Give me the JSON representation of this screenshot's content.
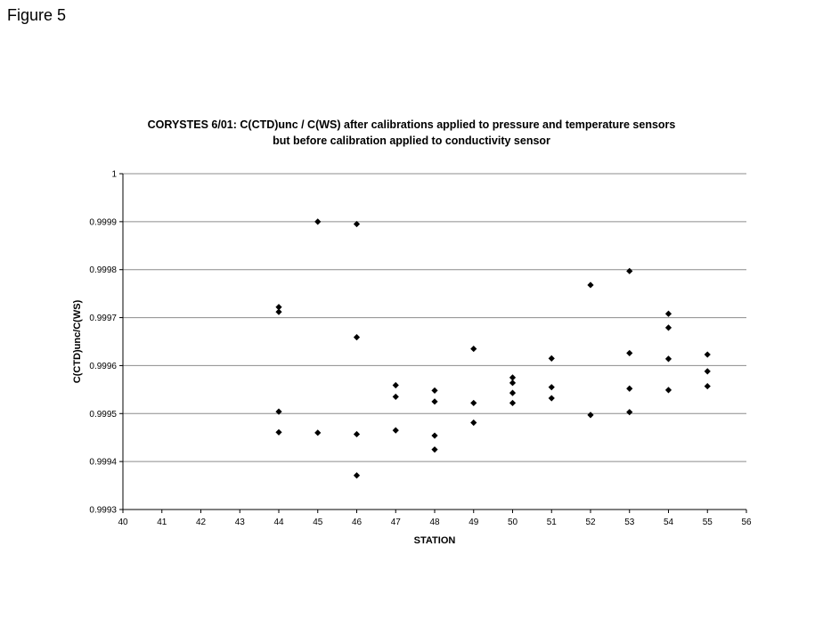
{
  "figure_label": "Figure 5",
  "chart_data": {
    "type": "scatter",
    "title_line1": "CORYSTES 6/01: C(CTD)unc / C(WS) after calibrations applied to pressure and temperature sensors",
    "title_line2": "but before calibration applied to conductivity sensor",
    "xlabel": "STATION",
    "ylabel": "C(CTD)unc/C(WS)",
    "xlim": [
      40,
      56
    ],
    "ylim": [
      0.9993,
      1
    ],
    "xticks": [
      40,
      41,
      42,
      43,
      44,
      45,
      46,
      47,
      48,
      49,
      50,
      51,
      52,
      53,
      54,
      55,
      56
    ],
    "yticks": [
      "0.9993",
      "0.9994",
      "0.9995",
      "0.9996",
      "0.9997",
      "0.9998",
      "0.9999",
      "1"
    ],
    "ytick_values": [
      0.9993,
      0.9994,
      0.9995,
      0.9996,
      0.9997,
      0.9998,
      0.9999,
      1.0
    ],
    "grid": "horizontal",
    "marker_color": "#000000",
    "points": [
      {
        "x": 44,
        "y": 0.999722
      },
      {
        "x": 44,
        "y": 0.999712
      },
      {
        "x": 44,
        "y": 0.999504
      },
      {
        "x": 44,
        "y": 0.999461
      },
      {
        "x": 45,
        "y": 0.9999
      },
      {
        "x": 45,
        "y": 0.99946
      },
      {
        "x": 46,
        "y": 0.999895
      },
      {
        "x": 46,
        "y": 0.999659
      },
      {
        "x": 46,
        "y": 0.999457
      },
      {
        "x": 46,
        "y": 0.999371
      },
      {
        "x": 47,
        "y": 0.999559
      },
      {
        "x": 47,
        "y": 0.999535
      },
      {
        "x": 47,
        "y": 0.999465
      },
      {
        "x": 48,
        "y": 0.999548
      },
      {
        "x": 48,
        "y": 0.999525
      },
      {
        "x": 48,
        "y": 0.999454
      },
      {
        "x": 48,
        "y": 0.999425
      },
      {
        "x": 49,
        "y": 0.999635
      },
      {
        "x": 49,
        "y": 0.999522
      },
      {
        "x": 49,
        "y": 0.999481
      },
      {
        "x": 50,
        "y": 0.999575
      },
      {
        "x": 50,
        "y": 0.999564
      },
      {
        "x": 50,
        "y": 0.999543
      },
      {
        "x": 50,
        "y": 0.999522
      },
      {
        "x": 51,
        "y": 0.999615
      },
      {
        "x": 51,
        "y": 0.999555
      },
      {
        "x": 51,
        "y": 0.999532
      },
      {
        "x": 52,
        "y": 0.999768
      },
      {
        "x": 52,
        "y": 0.999497
      },
      {
        "x": 53,
        "y": 0.999797
      },
      {
        "x": 53,
        "y": 0.999626
      },
      {
        "x": 53,
        "y": 0.999552
      },
      {
        "x": 53,
        "y": 0.999503
      },
      {
        "x": 54,
        "y": 0.999708
      },
      {
        "x": 54,
        "y": 0.999679
      },
      {
        "x": 54,
        "y": 0.999614
      },
      {
        "x": 54,
        "y": 0.999549
      },
      {
        "x": 55,
        "y": 0.999623
      },
      {
        "x": 55,
        "y": 0.999588
      },
      {
        "x": 55,
        "y": 0.999557
      }
    ]
  }
}
